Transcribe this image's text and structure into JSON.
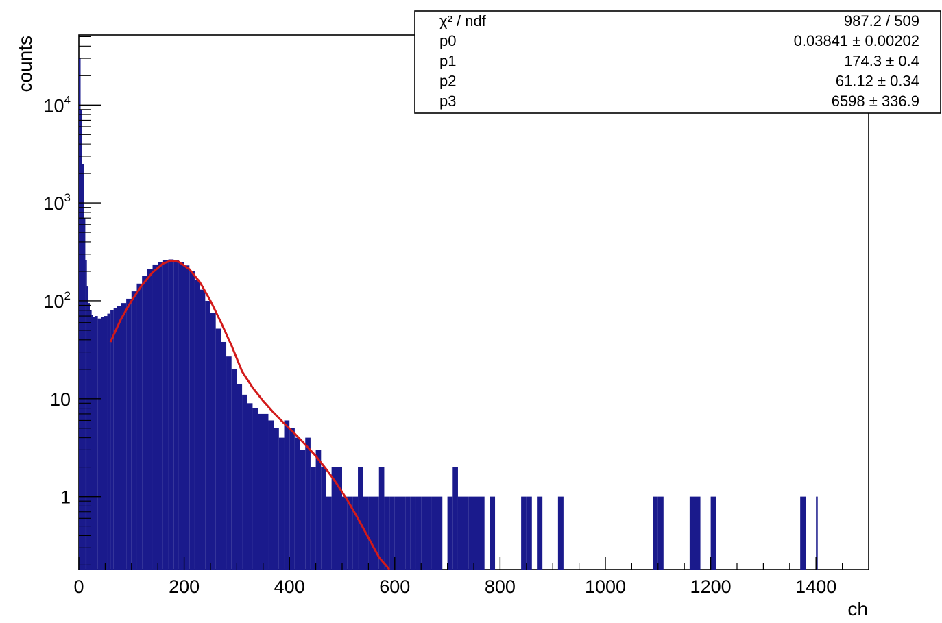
{
  "chart_data": {
    "type": "bar",
    "xlabel": "ch",
    "ylabel": "counts",
    "xlim": [
      0,
      1500
    ],
    "ylim": [
      0.18,
      52000
    ],
    "y_scale": "log",
    "x_ticks": [
      "0",
      "200",
      "400",
      "600",
      "800",
      "1000",
      "1200",
      "1400"
    ],
    "x_tick_values": [
      0,
      200,
      400,
      600,
      800,
      1000,
      1200,
      1400
    ],
    "y_ticks": [
      {
        "value": 1,
        "label": "1"
      },
      {
        "value": 10,
        "label": "10"
      },
      {
        "value": 100,
        "label": "10",
        "exp": "2"
      },
      {
        "value": 1000,
        "label": "10",
        "exp": "3"
      },
      {
        "value": 10000,
        "label": "10",
        "exp": "4"
      }
    ],
    "series": [
      {
        "color": "#1a1a8c",
        "x": [
          0,
          3,
          6,
          9,
          12,
          15,
          18,
          21,
          24,
          27,
          30,
          36,
          42,
          48,
          54,
          60,
          66,
          72,
          80,
          90,
          100,
          110,
          120,
          130,
          140,
          150,
          160,
          170,
          180,
          190,
          200,
          210,
          220,
          230,
          240,
          250,
          260,
          270,
          280,
          290,
          300,
          310,
          320,
          330,
          340,
          350,
          360,
          370,
          380,
          390,
          400,
          410,
          420,
          430,
          440,
          450,
          460,
          470,
          480,
          490,
          500,
          510,
          520,
          530,
          540,
          550,
          560,
          570,
          580,
          590,
          600,
          610,
          620,
          630,
          640,
          650,
          660,
          670,
          680,
          700,
          710,
          720,
          730,
          740,
          750,
          760,
          780,
          840,
          850,
          870,
          910,
          1090,
          1100,
          1160,
          1170,
          1200,
          1370,
          1400
        ],
        "values": [
          30000,
          9000,
          2500,
          700,
          260,
          140,
          95,
          80,
          72,
          68,
          70,
          66,
          68,
          70,
          74,
          80,
          84,
          88,
          95,
          105,
          125,
          150,
          180,
          210,
          235,
          250,
          260,
          265,
          262,
          250,
          230,
          200,
          165,
          130,
          100,
          75,
          52,
          38,
          27,
          20,
          14,
          11,
          9,
          8,
          7,
          7,
          6,
          5,
          4,
          6,
          5,
          4,
          3,
          4,
          2,
          3,
          2,
          1,
          2,
          2,
          1,
          1,
          1,
          2,
          1,
          1,
          1,
          2,
          1,
          1,
          1,
          1,
          1,
          1,
          1,
          1,
          1,
          1,
          1,
          1,
          2,
          1,
          1,
          1,
          1,
          1,
          1,
          1,
          1,
          1,
          1,
          1,
          1,
          1,
          1,
          1,
          1,
          1
        ]
      }
    ],
    "fit": {
      "color": "#d21a1a",
      "x_range": [
        60,
        590
      ],
      "x": [
        60,
        80,
        100,
        120,
        140,
        160,
        175,
        190,
        210,
        230,
        250,
        270,
        290,
        310,
        330,
        350,
        370,
        390,
        410,
        430,
        450,
        470,
        490,
        510,
        530,
        550,
        570,
        590
      ],
      "y": [
        38,
        65,
        100,
        145,
        195,
        240,
        258,
        250,
        210,
        155,
        100,
        60,
        35,
        19,
        13,
        9.5,
        7.2,
        5.6,
        4.4,
        3.4,
        2.6,
        1.9,
        1.35,
        0.92,
        0.6,
        0.38,
        0.24,
        0.16
      ]
    },
    "stats": {
      "rows": [
        {
          "label": "χ² / ndf",
          "value": "987.2 / 509"
        },
        {
          "label": "p0",
          "value": "0.03841 ± 0.00202"
        },
        {
          "label": "p1",
          "value": "174.3 ± 0.4"
        },
        {
          "label": "p2",
          "value": "61.12 ± 0.34"
        },
        {
          "label": "p3",
          "value": "6598 ± 336.9"
        }
      ]
    }
  }
}
